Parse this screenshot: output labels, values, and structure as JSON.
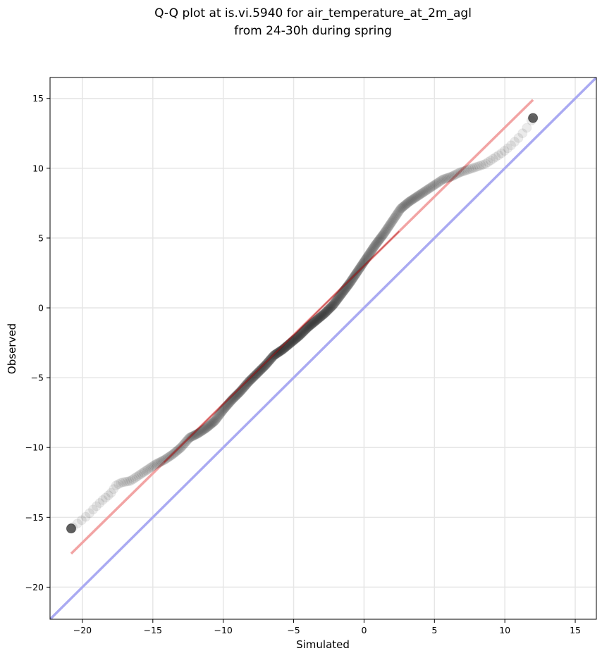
{
  "chart_data": {
    "type": "scatter",
    "title_line1": "Q-Q plot at is.vi.5940 for air_temperature_at_2m_agl",
    "title_line2": "from 24-30h during spring",
    "xlabel": "Simulated",
    "ylabel": "Observed",
    "xlim": [
      -22.3,
      16.5
    ],
    "ylim": [
      -22.3,
      16.5
    ],
    "xticks": [
      -20,
      -15,
      -10,
      -5,
      0,
      5,
      10,
      15
    ],
    "yticks": [
      -20,
      -15,
      -10,
      -5,
      0,
      5,
      10,
      15
    ],
    "xtick_labels": [
      "−20",
      "−15",
      "−10",
      "−5",
      "0",
      "5",
      "10",
      "15"
    ],
    "ytick_labels": [
      "−20",
      "−15",
      "−10",
      "−5",
      "0",
      "5",
      "10",
      "15"
    ],
    "grid": true,
    "colors": {
      "points": "#222222",
      "identity_line": "#aaaaf2",
      "fit_line": "#f2a4a4",
      "fit_line_inner": "#b01818",
      "grid": "#e6e6e6"
    },
    "identity_line": {
      "x": [
        -22.3,
        16.5
      ],
      "y": [
        -22.3,
        16.5
      ]
    },
    "fit_line": {
      "x": [
        -20.8,
        12.0
      ],
      "y": [
        -17.6,
        14.9
      ]
    },
    "quantile_curve": {
      "x": [
        -20.8,
        -20.3,
        -19.8,
        -19.2,
        -18.6,
        -18.0,
        -17.6,
        -17.2,
        -16.6,
        -16.0,
        -15.4,
        -14.8,
        -14.2,
        -13.6,
        -13.0,
        -12.4,
        -11.8,
        -11.2,
        -10.6,
        -10.0,
        -9.4,
        -8.8,
        -8.2,
        -7.6,
        -7.0,
        -6.4,
        -5.8,
        -5.2,
        -4.6,
        -4.0,
        -3.4,
        -2.8,
        -2.2,
        -1.6,
        -1.0,
        -0.4,
        0.2,
        0.8,
        1.4,
        2.0,
        2.6,
        3.2,
        3.8,
        4.4,
        5.0,
        5.6,
        6.2,
        6.8,
        7.4,
        8.0,
        8.6,
        9.2,
        9.8,
        10.4,
        11.0,
        11.5,
        12.0
      ],
      "y": [
        -15.8,
        -15.4,
        -15.0,
        -14.4,
        -13.8,
        -13.3,
        -12.7,
        -12.5,
        -12.4,
        -12.0,
        -11.6,
        -11.2,
        -10.9,
        -10.5,
        -10.0,
        -9.3,
        -9.0,
        -8.6,
        -8.1,
        -7.3,
        -6.6,
        -6.0,
        -5.3,
        -4.7,
        -4.1,
        -3.4,
        -3.0,
        -2.5,
        -2.0,
        -1.4,
        -0.9,
        -0.4,
        0.2,
        1.0,
        1.8,
        2.7,
        3.6,
        4.5,
        5.3,
        6.2,
        7.1,
        7.6,
        8.0,
        8.4,
        8.8,
        9.2,
        9.4,
        9.7,
        9.9,
        10.1,
        10.3,
        10.7,
        11.1,
        11.6,
        12.2,
        12.8,
        13.6
      ]
    }
  }
}
